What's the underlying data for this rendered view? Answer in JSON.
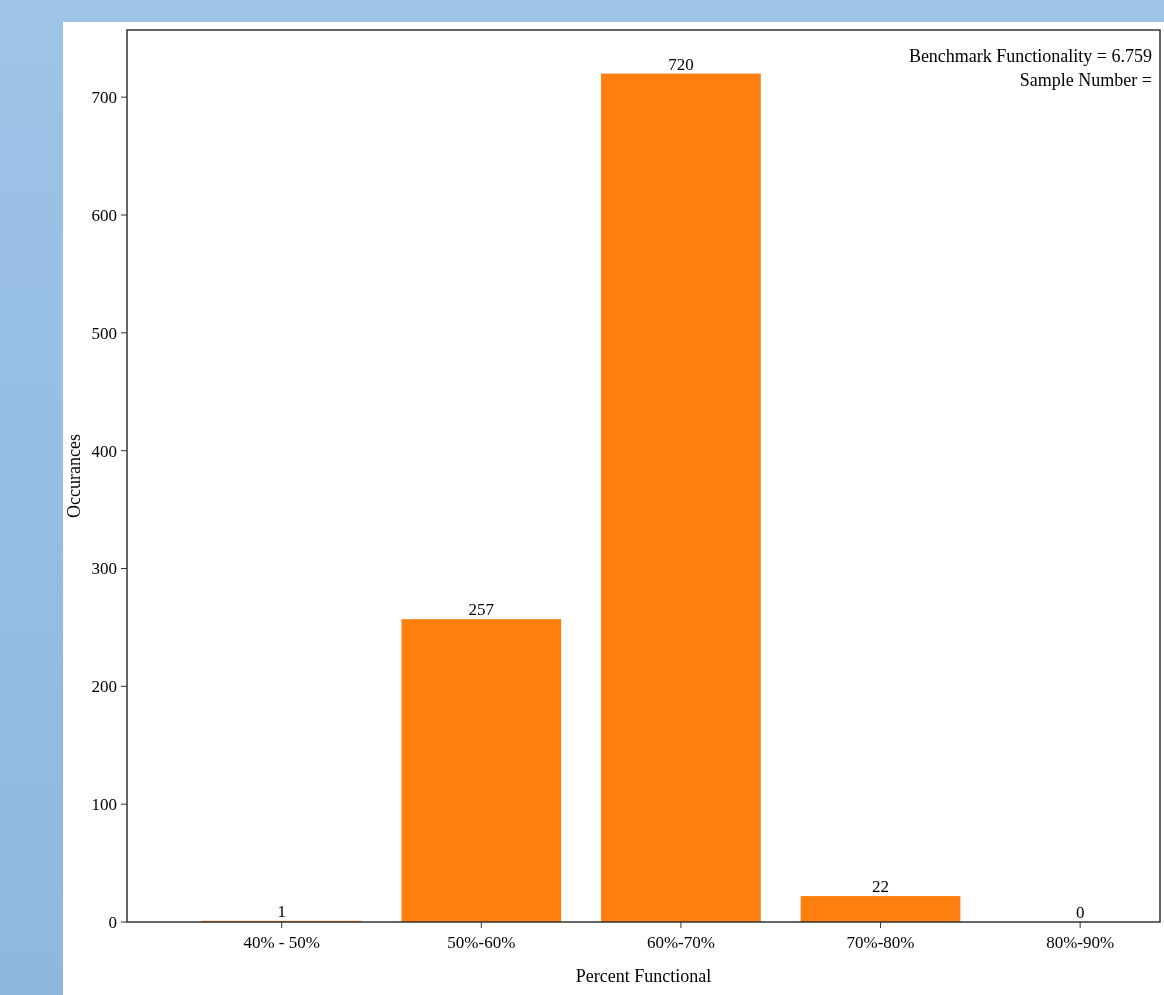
{
  "chart_data": {
    "type": "bar",
    "categories": [
      "40% - 50%",
      "50%-60%",
      "60%-70%",
      "70%-80%",
      "80%-90%"
    ],
    "values": [
      1,
      257,
      720,
      22,
      0
    ],
    "color": "#ff7f0e",
    "xlabel": "Percent Functional",
    "ylabel": "Occurances",
    "ylim": [
      0,
      757
    ],
    "yticks": [
      0,
      100,
      200,
      300,
      400,
      500,
      600,
      700
    ],
    "data_labels": true,
    "annotations": [
      "Benchmark Functionality = 6.759",
      "Sample Number ="
    ]
  }
}
